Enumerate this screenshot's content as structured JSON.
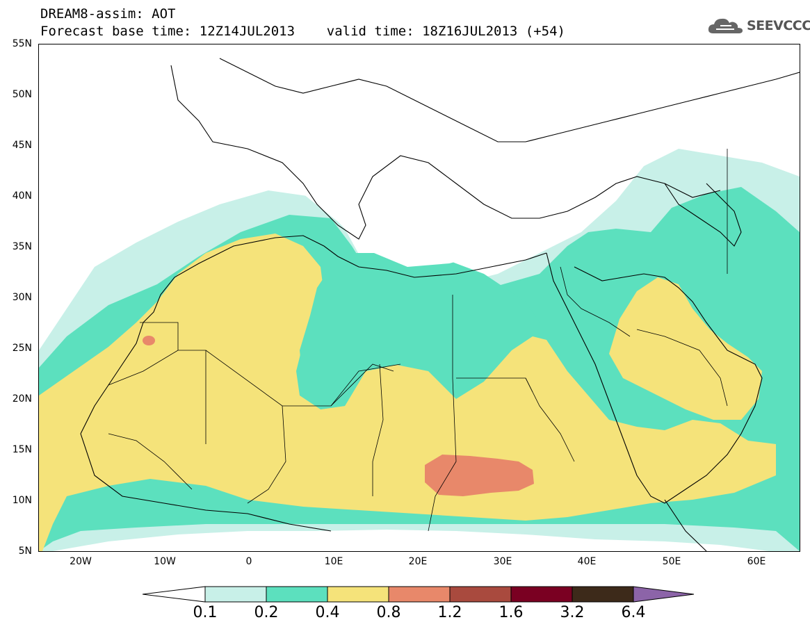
{
  "title": {
    "line1": "DREAM8-assim: AOT",
    "line2": "Forecast base time: 12Z14JUL2013    valid time: 18Z16JUL2013 (+54)"
  },
  "logo": {
    "text": "SEEVCCC",
    "icon": "cloud-logo-icon"
  },
  "axes": {
    "lat_labels": [
      "55N",
      "50N",
      "45N",
      "40N",
      "35N",
      "30N",
      "25N",
      "20N",
      "15N",
      "10N",
      "5N"
    ],
    "lon_labels": [
      "20W",
      "10W",
      "0",
      "10E",
      "20E",
      "30E",
      "40E",
      "50E",
      "60E"
    ],
    "lat_range": [
      5,
      55
    ],
    "lon_range": [
      -25,
      65
    ]
  },
  "colorbar": {
    "labels": [
      "0.1",
      "0.2",
      "0.4",
      "0.8",
      "1.2",
      "1.6",
      "3.2",
      "6.4"
    ],
    "colors": [
      "#c8f0e8",
      "#5ce0be",
      "#f5e37a",
      "#e8886a",
      "#a94a3e",
      "#7a0022",
      "#3d2a1a",
      "#8c64a8"
    ],
    "under_color": "#ffffff"
  },
  "field_colors": {
    "lt_0_2": "#c8f0e8",
    "0_2_to_0_4": "#5ce0be",
    "0_4_to_0_8": "#f5e37a",
    "0_8_to_1_2": "#e8886a"
  }
}
